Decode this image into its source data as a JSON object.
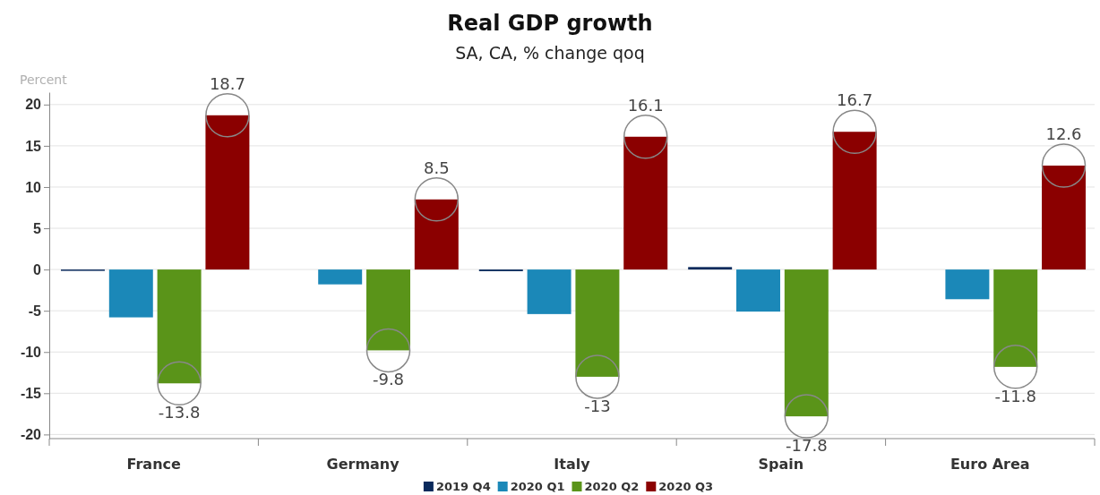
{
  "chart_data": {
    "type": "bar",
    "title": "Real GDP growth",
    "subtitle": "SA, CA, % change qoq",
    "ylabel": "Percent",
    "categories": [
      "France",
      "Germany",
      "Italy",
      "Spain",
      "Euro Area"
    ],
    "series": [
      {
        "name": "2019 Q4",
        "color": "#0a2a5c",
        "values": [
          -0.1,
          0,
          -0.2,
          0.3,
          0
        ]
      },
      {
        "name": "2020 Q1",
        "color": "#1b88b8",
        "values": [
          -5.8,
          -1.8,
          -5.4,
          -5.1,
          -3.6
        ]
      },
      {
        "name": "2020 Q2",
        "color": "#5a9419",
        "values": [
          -13.8,
          -9.8,
          -13,
          -17.8,
          -11.8
        ],
        "value_labels": [
          "-13.8",
          "-9.8",
          "-13",
          "-17.8",
          "-11.8"
        ]
      },
      {
        "name": "2020 Q3",
        "color": "#8b0000",
        "values": [
          18.7,
          8.5,
          16.1,
          16.7,
          12.6
        ],
        "value_labels": [
          "18.7",
          "8.5",
          "16.1",
          "16.7",
          "12.6"
        ]
      }
    ],
    "ylim": [
      -20.5,
      21.5
    ],
    "yticks": [
      -20,
      -15,
      -10,
      -5,
      0,
      5,
      10,
      15,
      20
    ],
    "grid": "y",
    "legend": "bottom"
  }
}
